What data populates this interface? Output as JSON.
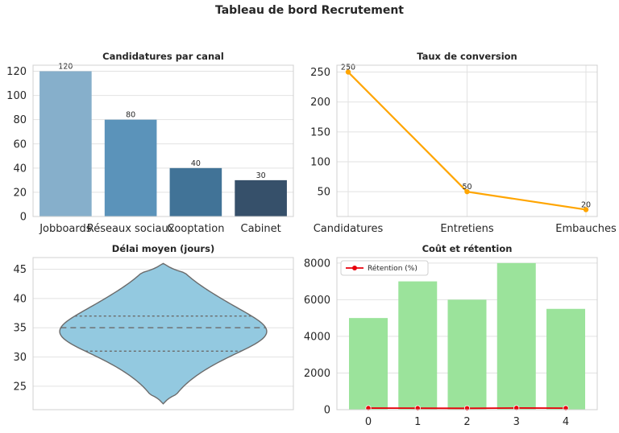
{
  "figure": {
    "title": "Tableau de bord Recrutement"
  },
  "chart_data": [
    {
      "type": "bar",
      "title": "Candidatures par canal",
      "categories": [
        "Jobboards",
        "Réseaux sociaux",
        "Cooptation",
        "Cabinet"
      ],
      "values": [
        120,
        80,
        40,
        30
      ],
      "data_labels": [
        "120",
        "80",
        "40",
        "30"
      ],
      "colors": [
        "#86afcb",
        "#5b93ba",
        "#417397",
        "#36506a"
      ],
      "ylim": [
        0,
        125
      ],
      "yticks": [
        0,
        20,
        40,
        60,
        80,
        100,
        120
      ],
      "grid": true
    },
    {
      "type": "line",
      "title": "Taux de conversion",
      "categories": [
        "Candidatures",
        "Entretiens",
        "Embauches"
      ],
      "values": [
        250,
        50,
        20
      ],
      "data_labels": [
        "250",
        "50",
        "20"
      ],
      "color": "#ffa500",
      "ylim": [
        8.5,
        261.5
      ],
      "yticks": [
        50,
        100,
        150,
        200,
        250
      ],
      "grid": true
    },
    {
      "type": "violin",
      "title": "Délai moyen (jours)",
      "ylim": [
        21,
        47
      ],
      "yticks": [
        25,
        30,
        35,
        40,
        45
      ],
      "min": 22,
      "max": 46,
      "quartiles": [
        31,
        35,
        37
      ],
      "color": "#93c9e0",
      "grid": true
    },
    {
      "type": "bar",
      "title": "Coût et rétention",
      "categories": [
        "0",
        "1",
        "2",
        "3",
        "4"
      ],
      "values": [
        5000,
        7000,
        6000,
        8000,
        5500
      ],
      "color": "#9be39b",
      "ylim": [
        0,
        8300
      ],
      "yticks": [
        0,
        2000,
        4000,
        6000,
        8000
      ],
      "grid": true,
      "line_series": {
        "name": "Rétention (%)",
        "values": [
          85,
          80,
          75,
          90,
          82
        ],
        "color": "#e8000b"
      },
      "legend_position": "upper-left"
    }
  ]
}
